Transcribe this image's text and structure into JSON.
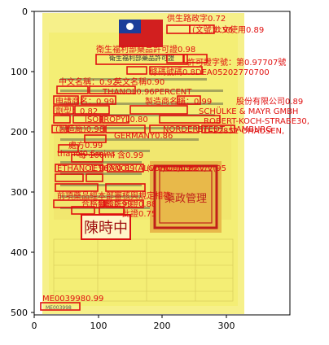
{
  "axis": {
    "x_ticks": [
      "0",
      "100",
      "200",
      "300"
    ],
    "y_ticks": [
      "0",
      "100",
      "200",
      "300",
      "400",
      "500"
    ]
  },
  "document": {
    "header_box": "衛生福利部藥品許可證",
    "stamp_name": "陳時中",
    "stamp_seal": "藥政管理",
    "footer_code": "ME003998"
  },
  "detections": [
    {
      "text": "供生路政字",
      "score": "0.72"
    },
    {
      "text": "(文號)",
      "score": "0.96"
    },
    {
      "text": "公文使用",
      "score": "0.89"
    },
    {
      "text": "衛生福利部藥品許可證",
      "score": "0.98"
    },
    {
      "text": "許可證字號：第",
      "score": "0.97707號"
    },
    {
      "text": "條碼號碼",
      "score": "0.8DEA05202770700"
    },
    {
      "text": "中文名稱：",
      "score": "0.92"
    },
    {
      "text": "英文名稱",
      "score": "0.90"
    },
    {
      "text": "THANOL",
      "score": "0.96PERCENT"
    },
    {
      "text": "申請商名：",
      "score": "0.99"
    },
    {
      "text": "製造商名稱：",
      "score": "0.99"
    },
    {
      "text": "股份有限公司",
      "score": "0.89"
    },
    {
      "text": "劑型：",
      "score": "0.82"
    },
    {
      "text": "ISOPROPYL",
      "score": "0.80"
    },
    {
      "text": "SCHÜLKE & MAYR GMBH",
      "score": ""
    },
    {
      "text": "ROBERT-KOCH-STRABE30,",
      "score": ""
    },
    {
      "text": "NORDERSTEDT, HAMBURG",
      "score": ""
    },
    {
      "text": "(製造廠)",
      "score": "0.98"
    },
    {
      "text": "GERMANY",
      "score": "0.86"
    },
    {
      "text": "D-22851 OHAUSEN,",
      "score": ""
    },
    {
      "text": "處方",
      "score": "0.99"
    },
    {
      "text": "每 100ml 含",
      "score": "0.99"
    },
    {
      "text": "thanol",
      "score": "0.5mins"
    },
    {
      "text": "ETHANOL 96%",
      "score": "0.89"
    },
    {
      "text": "(ETHANOL)(ALCOHOL)",
      "score": "0.82"
    },
    {
      "text": "(v/v)",
      "score": "0.96.9%V/V(95"
    },
    {
      "text": "前項藥品經本部審核與規定相符",
      "score": ""
    },
    {
      "text": "合格發給許可證",
      "score": "0.88"
    },
    {
      "text": "此證",
      "score": "0.75"
    },
    {
      "text": "部長",
      "score": "0.99"
    },
    {
      "text": "ME003998",
      "score": "0.99"
    }
  ]
}
